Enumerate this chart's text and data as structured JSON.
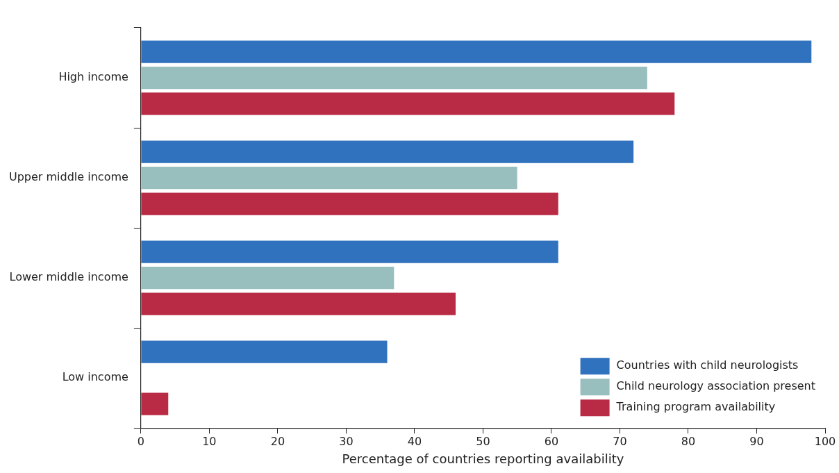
{
  "chart_data": {
    "type": "bar",
    "orientation": "horizontal",
    "xlabel": "Percentage of countries reporting availability",
    "categories": [
      "High income",
      "Upper middle income",
      "Lower middle income",
      "Low income"
    ],
    "series": [
      {
        "name": "Countries with child neurologists",
        "color": "#3072bd",
        "values": [
          98,
          72,
          61,
          36
        ]
      },
      {
        "name": "Child neurology association present",
        "color": "#98bfbe",
        "values": [
          74,
          55,
          37,
          0
        ]
      },
      {
        "name": "Training program availability",
        "color": "#b92b44",
        "values": [
          78,
          61,
          46,
          4
        ]
      }
    ],
    "xlim": [
      0,
      100
    ],
    "xticks": [
      0,
      10,
      20,
      30,
      40,
      50,
      60,
      70,
      80,
      90,
      100
    ],
    "grid": false,
    "legend": "bottom right"
  }
}
